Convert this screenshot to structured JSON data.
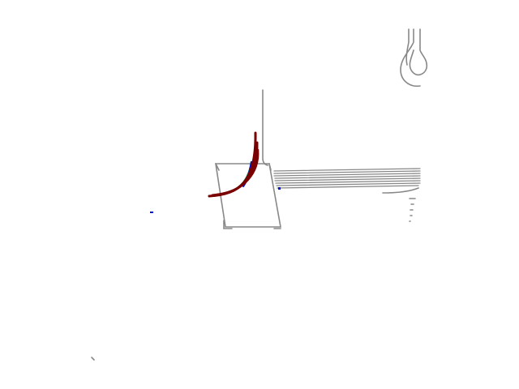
{
  "scene": {
    "background": "#ffffff",
    "colors": {
      "map_lines": "#888888",
      "track_start": "#00d21e",
      "track_end": "#0012d8",
      "planned_path": "#7a0000",
      "planned_path_outline": "#008060"
    },
    "legend": null
  }
}
